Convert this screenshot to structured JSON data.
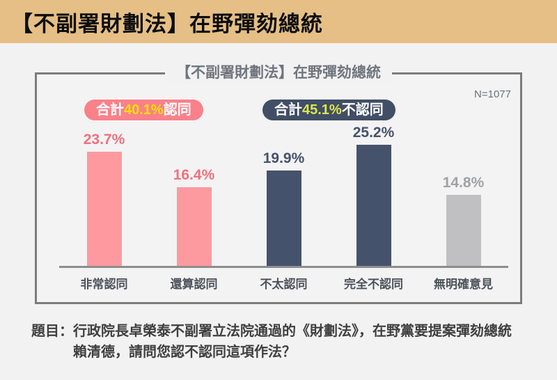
{
  "header": {
    "title": "【不副署財劃法】在野彈劾總統"
  },
  "card": {
    "title": "【不副署財劃法】在野彈劾總統",
    "sample_size": "N=1077"
  },
  "badges": [
    {
      "prefix": "合計",
      "value": "40.1%",
      "suffix": "認同",
      "bg_key": "badge_agree_bg",
      "num_color_key": "badge_agree_number"
    },
    {
      "prefix": "合計",
      "value": "45.1%",
      "suffix": "不認同",
      "bg_key": "badge_disagree_bg",
      "num_color_key": "badge_disagree_number"
    }
  ],
  "chart": {
    "bars": [
      {
        "category": "非常認同",
        "value": 23.7,
        "display": "23.7%",
        "group": "agree"
      },
      {
        "category": "還算認同",
        "value": 16.4,
        "display": "16.4%",
        "group": "agree"
      },
      {
        "category": "不太認同",
        "value": 19.9,
        "display": "19.9%",
        "group": "disagree"
      },
      {
        "category": "完全不認同",
        "value": 25.2,
        "display": "25.2%",
        "group": "disagree"
      },
      {
        "category": "無明確意見",
        "value": 14.8,
        "display": "14.8%",
        "group": "neutral"
      }
    ]
  },
  "question": {
    "prefix": "題目：",
    "line1": "行政院長卓榮泰不副署立法院通過的《財劃法》，在野黨要提案彈劾總統",
    "line2": "賴清德，請問您認不認同這項作法？"
  },
  "colors": {
    "header_bg": "#e5bf85",
    "page_bg": "#f2f2f3",
    "agree_bar": "#fc9aa0",
    "agree_label": "#f0707c",
    "disagree_bar": "#45526b",
    "disagree_label": "#45526b",
    "neutral_bar": "#c0c0c2",
    "neutral_label": "#a0a1a4",
    "badge_agree_bg": "#f9818a",
    "badge_disagree_bg": "#414e66",
    "badge_agree_number": "#ffe100",
    "badge_disagree_number": "#dde74a"
  },
  "chart_data": {
    "type": "bar",
    "title": "【不副署財劃法】在野彈劾總統",
    "sample_size": "N=1077",
    "categories": [
      "非常認同",
      "還算認同",
      "不太認同",
      "完全不認同",
      "無明確意見"
    ],
    "values": [
      23.7,
      16.4,
      19.9,
      25.2,
      14.8
    ],
    "unit": "%",
    "data_labels": [
      "23.7%",
      "16.4%",
      "19.9%",
      "25.2%",
      "14.8%"
    ],
    "annotations": [
      "合計40.1%認同",
      "合計45.1%不認同"
    ],
    "bar_colors": [
      "#fc9aa0",
      "#fc9aa0",
      "#45526b",
      "#45526b",
      "#c0c0c2"
    ],
    "ylim": [
      0,
      28
    ],
    "grid": false,
    "legend": "none"
  }
}
